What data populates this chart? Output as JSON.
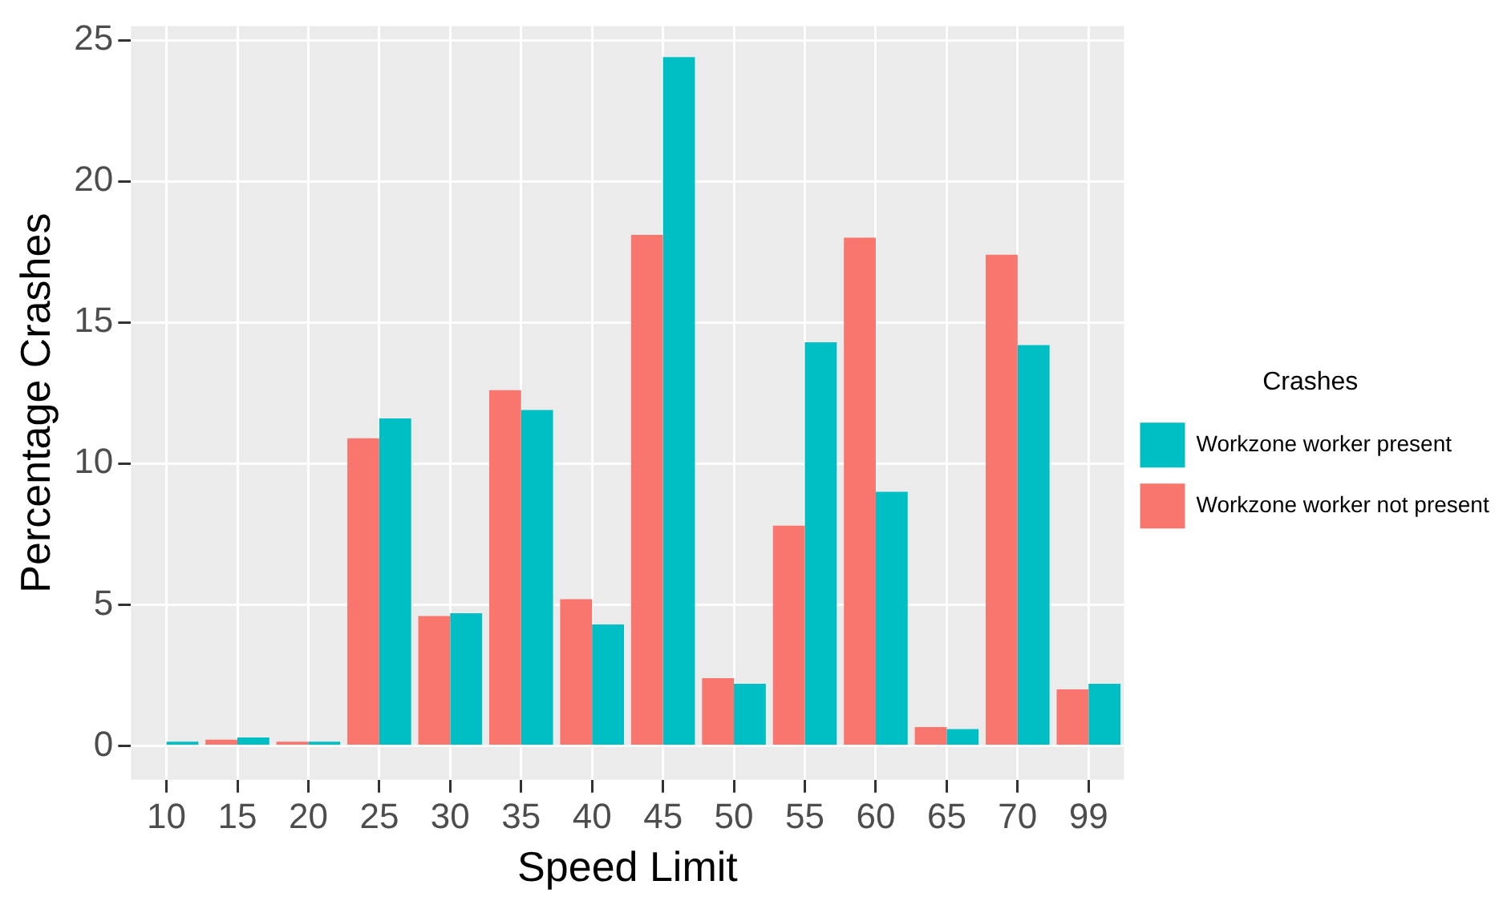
{
  "chart_data": {
    "type": "bar",
    "xlabel": "Speed Limit",
    "ylabel": "Percentage Crashes",
    "legend_title": "Crashes",
    "categories": [
      "10",
      "15",
      "20",
      "25",
      "30",
      "35",
      "40",
      "45",
      "50",
      "55",
      "60",
      "65",
      "70",
      "99"
    ],
    "series": [
      {
        "name": "Workzone worker not present",
        "color": "#f8766d",
        "values": [
          null,
          0.22,
          0.15,
          10.9,
          4.6,
          12.6,
          5.2,
          18.1,
          2.4,
          7.8,
          18.0,
          0.67,
          17.4,
          2.0
        ]
      },
      {
        "name": "Workzone worker present",
        "color": "#00bfc4",
        "values": [
          0.15,
          0.3,
          0.15,
          11.6,
          4.7,
          11.9,
          4.3,
          24.4,
          2.2,
          14.3,
          9.0,
          0.6,
          14.2,
          2.2
        ]
      }
    ],
    "ylim": [
      -1.2,
      25.5
    ],
    "yticks": [
      0,
      5,
      10,
      15,
      20,
      25
    ],
    "grid": true,
    "legend": "right"
  }
}
